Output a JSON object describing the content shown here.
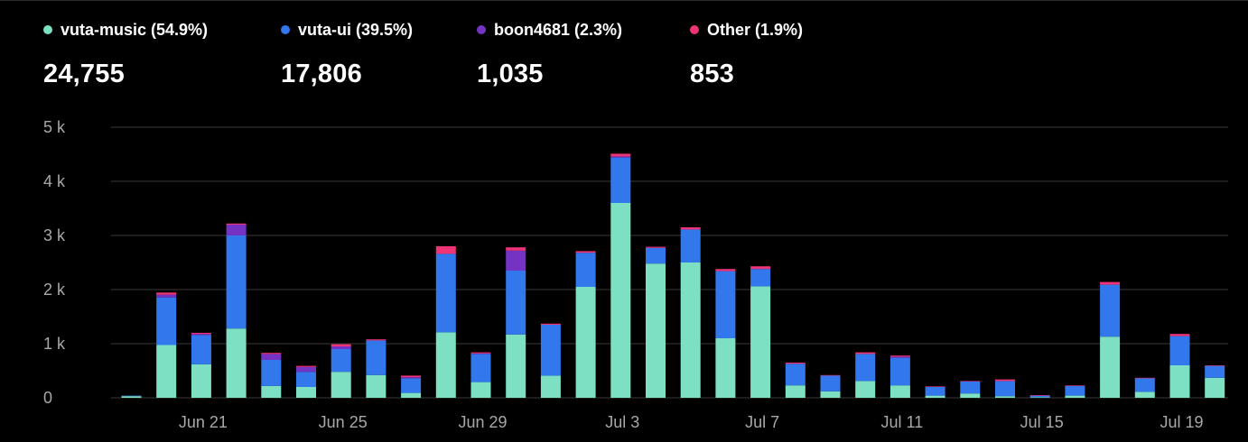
{
  "legend": [
    {
      "label": "vuta-music (54.9%)",
      "total": "24,755",
      "color": "#7ee0c3"
    },
    {
      "label": "vuta-ui (39.5%)",
      "total": "17,806",
      "color": "#3277ec"
    },
    {
      "label": "boon4681 (2.3%)",
      "total": "1,035",
      "color": "#7533c4"
    },
    {
      "label": "Other (1.9%)",
      "total": "853",
      "color": "#ee3377"
    }
  ],
  "chart_data": {
    "type": "bar",
    "stacked": true,
    "ylim": [
      0,
      5000
    ],
    "y_ticks": [
      0,
      1000,
      2000,
      3000,
      4000,
      5000
    ],
    "y_tick_labels": [
      "0",
      "1 k",
      "2 k",
      "3 k",
      "4 k",
      "5 k"
    ],
    "x_tick_labels": [
      "Jun 21",
      "Jun 25",
      "Jun 29",
      "Jul 3",
      "Jul 7",
      "Jul 11",
      "Jul 15",
      "Jul 19"
    ],
    "x_tick_indices": [
      2,
      6,
      10,
      14,
      18,
      22,
      26,
      30
    ],
    "grid": true,
    "legend_position": "top",
    "categories": [
      "Jun 19",
      "Jun 20",
      "Jun 21",
      "Jun 22",
      "Jun 23",
      "Jun 24",
      "Jun 25",
      "Jun 26",
      "Jun 27",
      "Jun 28",
      "Jun 29",
      "Jun 30",
      "Jul 1",
      "Jul 2",
      "Jul 3",
      "Jul 4",
      "Jul 5",
      "Jul 6",
      "Jul 7",
      "Jul 8",
      "Jul 9",
      "Jul 10",
      "Jul 11",
      "Jul 12",
      "Jul 13",
      "Jul 14",
      "Jul 15",
      "Jul 16",
      "Jul 17",
      "Jul 18",
      "Jul 19",
      "Jul 20"
    ],
    "series": [
      {
        "name": "vuta-music",
        "color": "#7ee0c3",
        "values": [
          30,
          975,
          620,
          1280,
          220,
          200,
          480,
          420,
          90,
          1210,
          290,
          1170,
          410,
          2050,
          3600,
          2480,
          2500,
          1100,
          2060,
          230,
          120,
          310,
          230,
          40,
          80,
          30,
          10,
          40,
          1130,
          110,
          600,
          370
        ]
      },
      {
        "name": "vuta-ui",
        "color": "#3277ec",
        "values": [
          10,
          880,
          540,
          1720,
          480,
          280,
          420,
          640,
          270,
          1450,
          520,
          1180,
          940,
          630,
          840,
          290,
          610,
          1240,
          320,
          400,
          290,
          500,
          510,
          160,
          220,
          280,
          30,
          180,
          960,
          250,
          540,
          220
        ]
      },
      {
        "name": "boon4681",
        "color": "#7533c4",
        "values": [
          0,
          50,
          20,
          200,
          110,
          90,
          50,
          0,
          20,
          0,
          10,
          370,
          0,
          0,
          20,
          0,
          0,
          0,
          0,
          0,
          0,
          0,
          20,
          0,
          0,
          0,
          0,
          0,
          0,
          0,
          0,
          0
        ]
      },
      {
        "name": "Other",
        "color": "#ee3377",
        "values": [
          0,
          40,
          20,
          20,
          20,
          20,
          40,
          20,
          30,
          140,
          20,
          60,
          20,
          30,
          50,
          20,
          40,
          40,
          50,
          20,
          10,
          30,
          20,
          10,
          10,
          30,
          10,
          10,
          50,
          10,
          40,
          10
        ]
      }
    ]
  }
}
